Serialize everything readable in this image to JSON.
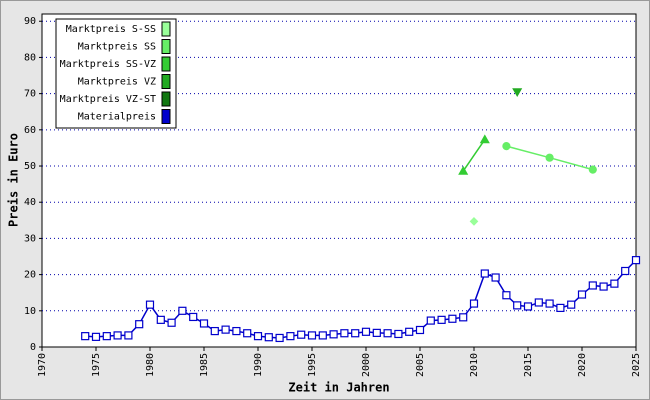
{
  "chart_data": {
    "type": "line",
    "xlabel": "Zeit in Jahren",
    "ylabel": "Preis in Euro",
    "xlim": [
      1970,
      2025
    ],
    "ylim": [
      0,
      92
    ],
    "xticks": [
      1970,
      1975,
      1980,
      1985,
      1990,
      1995,
      2000,
      2005,
      2010,
      2015,
      2020,
      2025
    ],
    "yticks": [
      0,
      10,
      20,
      30,
      40,
      50,
      60,
      70,
      80,
      90
    ],
    "grid": true,
    "legend": "upper left",
    "series": [
      {
        "name": "Marktpreis S-SS",
        "color": "#99ff99",
        "marker": "diamond",
        "x": [
          2010
        ],
        "values": [
          34.7
        ]
      },
      {
        "name": "Marktpreis SS",
        "color": "#66ee66",
        "marker": "circle",
        "x": [
          2013,
          2017,
          2021
        ],
        "values": [
          55.5,
          52.3,
          49
        ]
      },
      {
        "name": "Marktpreis SS-VZ",
        "color": "#33cc33",
        "marker": "triangle",
        "x": [
          2009,
          2011
        ],
        "values": [
          48.6,
          57.3
        ]
      },
      {
        "name": "Marktpreis VZ",
        "color": "#22aa22",
        "marker": "triangle-down",
        "x": [
          2014
        ],
        "values": [
          70.5
        ]
      },
      {
        "name": "Marktpreis VZ-ST",
        "color": "#117711",
        "marker": "square",
        "x": [],
        "values": []
      },
      {
        "name": "Materialpreis",
        "color": "#0000cc",
        "marker": "square",
        "x": [
          1974,
          1975,
          1976,
          1977,
          1978,
          1979,
          1980,
          1981,
          1982,
          1983,
          1984,
          1985,
          1986,
          1987,
          1988,
          1989,
          1990,
          1991,
          1992,
          1993,
          1994,
          1995,
          1996,
          1997,
          1998,
          1999,
          2000,
          2001,
          2002,
          2003,
          2004,
          2005,
          2006,
          2007,
          2008,
          2009,
          2010,
          2011,
          2012,
          2013,
          2014,
          2015,
          2016,
          2017,
          2018,
          2019,
          2020,
          2021,
          2022,
          2023,
          2024,
          2025
        ],
        "values": [
          3.0,
          2.8,
          3.0,
          3.2,
          3.2,
          6.3,
          11.7,
          7.5,
          6.7,
          10,
          8.3,
          6.5,
          4.4,
          4.8,
          4.4,
          3.8,
          3.0,
          2.7,
          2.5,
          3.0,
          3.4,
          3.2,
          3.2,
          3.5,
          3.8,
          3.8,
          4.2,
          3.9,
          3.8,
          3.6,
          4.2,
          4.7,
          7.3,
          7.5,
          7.8,
          8.2,
          12,
          20.3,
          19.2,
          14.3,
          11.5,
          11.2,
          12.3,
          12,
          10.8,
          11.7,
          14.5,
          17,
          16.7,
          17.5,
          21,
          24
        ]
      }
    ]
  }
}
